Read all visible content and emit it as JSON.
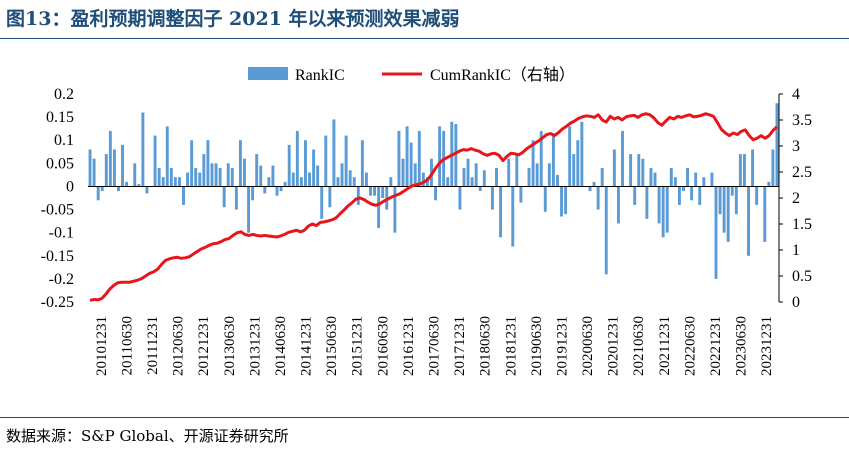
{
  "header": {
    "title": "图13：盈利预期调整因子 2021 年以来预测效果减弱"
  },
  "footer": {
    "source": "数据来源：S&P Global、开源证券研究所"
  },
  "chart_data": {
    "type": "bar+line",
    "title": "图13：盈利预期调整因子 2021 年以来预测效果减弱",
    "legend": {
      "placement": "top",
      "entries": [
        "RankIC",
        "CumRankIC（右轴）"
      ]
    },
    "y_left": {
      "ylim": [
        -0.25,
        0.2
      ],
      "ticks": [
        "0.2",
        "0.15",
        "0.1",
        "0.05",
        "0",
        "-0.05",
        "-0.1",
        "-0.15",
        "-0.2",
        "-0.25"
      ]
    },
    "y_right": {
      "ylim": [
        0,
        4
      ],
      "ticks": [
        "4",
        "3.5",
        "3",
        "2.5",
        "2",
        "1.5",
        "1",
        "0.5",
        "0"
      ]
    },
    "x_tick_labels": [
      "20101231",
      "20110630",
      "20111231",
      "20120630",
      "20121231",
      "20130630",
      "20131231",
      "20140630",
      "20141231",
      "20150630",
      "20151231",
      "20160630",
      "20161231",
      "20170630",
      "20171231",
      "20180630",
      "20181231",
      "20190630",
      "20191231",
      "20200630",
      "20201231",
      "20210630",
      "20211231",
      "20220630",
      "20221231",
      "20230630",
      "20231231"
    ],
    "series": [
      {
        "name": "RankIC",
        "type": "bar",
        "color": "#5b9bd5",
        "values": [
          0.08,
          0.06,
          -0.03,
          -0.01,
          0.07,
          0.12,
          0.08,
          -0.01,
          0.09,
          0.01,
          0.0,
          0.05,
          0.005,
          0.16,
          -0.015,
          0.0,
          0.11,
          0.04,
          0.02,
          0.13,
          0.04,
          0.02,
          0.02,
          -0.04,
          0.03,
          0.1,
          0.04,
          0.03,
          0.07,
          0.1,
          0.05,
          0.05,
          0.04,
          -0.045,
          0.05,
          0.04,
          -0.05,
          0.1,
          0.06,
          -0.1,
          -0.03,
          0.07,
          0.045,
          -0.015,
          0.02,
          0.045,
          -0.02,
          -0.01,
          0.01,
          0.09,
          0.03,
          0.12,
          0.02,
          0.1,
          0.03,
          0.08,
          0.045,
          -0.07,
          0.11,
          -0.045,
          0.145,
          0.02,
          0.05,
          0.11,
          0.035,
          0.02,
          -0.04,
          0.1,
          0.03,
          -0.02,
          -0.02,
          -0.09,
          -0.025,
          -0.05,
          0.02,
          -0.1,
          0.12,
          0.06,
          0.13,
          0.095,
          0.05,
          0.12,
          0.03,
          0.02,
          0.06,
          -0.03,
          0.13,
          0.12,
          0.02,
          0.14,
          0.135,
          -0.05,
          0.04,
          0.06,
          0.02,
          0.05,
          -0.01,
          0.035,
          0.0,
          -0.05,
          0.04,
          -0.11,
          0.0,
          0.06,
          -0.13,
          0.07,
          -0.035,
          0.0,
          0.04,
          0.1,
          0.05,
          0.12,
          -0.055,
          0.05,
          0.115,
          0.025,
          -0.065,
          -0.06,
          0.13,
          0.07,
          0.1,
          0.14,
          0.0,
          -0.01,
          0.01,
          -0.05,
          0.04,
          -0.19,
          0.0,
          0.08,
          -0.08,
          0.12,
          0.0,
          0.07,
          -0.04,
          0.07,
          0.06,
          -0.07,
          0.04,
          0.03,
          -0.08,
          -0.11,
          -0.1,
          0.04,
          0.02,
          -0.04,
          -0.01,
          0.04,
          -0.03,
          0.03,
          -0.04,
          0.02,
          0.0,
          0.03,
          -0.2,
          -0.06,
          -0.1,
          -0.12,
          -0.02,
          -0.06,
          0.07,
          0.07,
          -0.15,
          0.08,
          -0.04,
          0.0,
          -0.12,
          0.01,
          0.08,
          0.18
        ]
      },
      {
        "name": "CumRankIC（右轴）",
        "type": "line",
        "axis": "right",
        "color": "#e8151b",
        "values": [
          0.03,
          0.05,
          0.04,
          0.07,
          0.15,
          0.25,
          0.32,
          0.37,
          0.38,
          0.38,
          0.38,
          0.4,
          0.42,
          0.45,
          0.5,
          0.55,
          0.58,
          0.63,
          0.72,
          0.8,
          0.83,
          0.85,
          0.86,
          0.84,
          0.85,
          0.87,
          0.92,
          0.97,
          1.02,
          1.05,
          1.09,
          1.12,
          1.13,
          1.16,
          1.2,
          1.22,
          1.28,
          1.33,
          1.35,
          1.3,
          1.28,
          1.3,
          1.28,
          1.27,
          1.28,
          1.27,
          1.26,
          1.25,
          1.27,
          1.3,
          1.34,
          1.36,
          1.38,
          1.35,
          1.38,
          1.46,
          1.5,
          1.47,
          1.53,
          1.54,
          1.56,
          1.58,
          1.62,
          1.7,
          1.77,
          1.85,
          1.91,
          1.98,
          2.0,
          1.97,
          1.92,
          1.88,
          1.86,
          1.89,
          1.94,
          1.98,
          2.02,
          2.05,
          2.08,
          2.13,
          2.18,
          2.23,
          2.25,
          2.27,
          2.3,
          2.35,
          2.45,
          2.57,
          2.67,
          2.74,
          2.78,
          2.82,
          2.86,
          2.9,
          2.93,
          2.92,
          2.95,
          2.92,
          2.9,
          2.85,
          2.82,
          2.85,
          2.86,
          2.82,
          2.72,
          2.8,
          2.86,
          2.85,
          2.83,
          2.88,
          2.95,
          3.0,
          3.05,
          3.1,
          3.16,
          3.22,
          3.24,
          3.2,
          3.26,
          3.33,
          3.38,
          3.44,
          3.48,
          3.53,
          3.56,
          3.58,
          3.57,
          3.55,
          3.6,
          3.5,
          3.46,
          3.57,
          3.52,
          3.55,
          3.5,
          3.56,
          3.58,
          3.59,
          3.55,
          3.6,
          3.62,
          3.6,
          3.54,
          3.45,
          3.4,
          3.48,
          3.55,
          3.52,
          3.57,
          3.55,
          3.58,
          3.6,
          3.56,
          3.57,
          3.59,
          3.62,
          3.6,
          3.57,
          3.45,
          3.32,
          3.25,
          3.2,
          3.25,
          3.22,
          3.28,
          3.31,
          3.2,
          3.12,
          3.15,
          3.2,
          3.15,
          3.2,
          3.3,
          3.37
        ]
      }
    ]
  }
}
